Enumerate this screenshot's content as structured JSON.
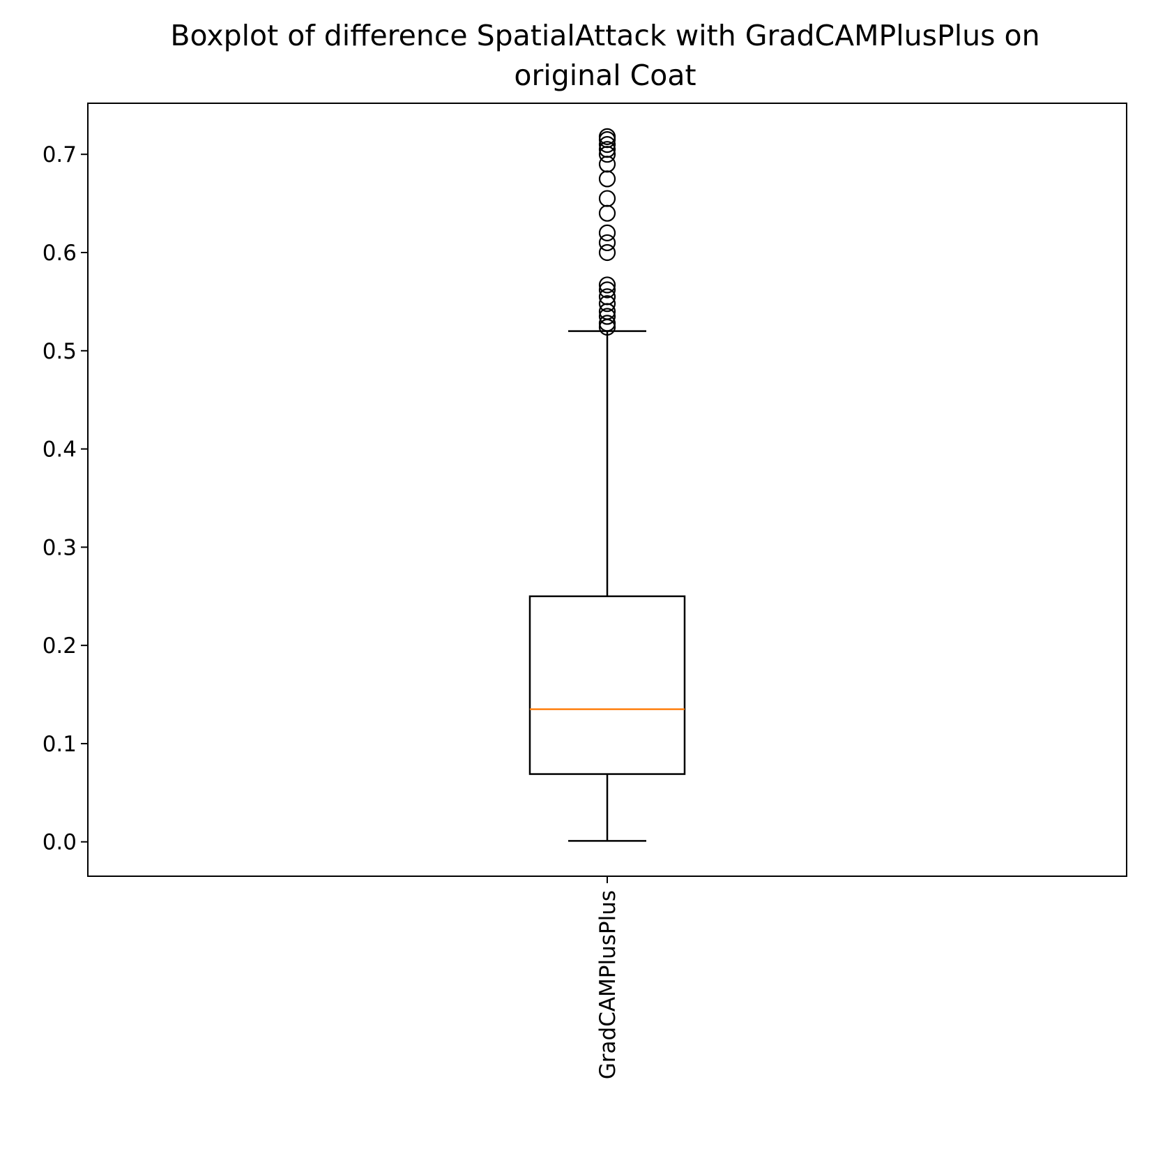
{
  "chart_data": {
    "type": "boxplot",
    "title": "Boxplot of difference SpatialAttack with GradCAMPlusPlus on original Coat",
    "title_lines": [
      "Boxplot of difference SpatialAttack with GradCAMPlusPlus on",
      "original Coat"
    ],
    "xlabel": "",
    "ylabel": "",
    "ylim": [
      -0.035,
      0.752
    ],
    "yticks": [
      0.0,
      0.1,
      0.2,
      0.3,
      0.4,
      0.5,
      0.6,
      0.7
    ],
    "ytick_labels": [
      "0.0",
      "0.1",
      "0.2",
      "0.3",
      "0.4",
      "0.5",
      "0.6",
      "0.7"
    ],
    "categories": [
      "GradCAMPlusPlus"
    ],
    "xtick_rotation": "vertical",
    "grid": false,
    "legend": "none",
    "series": [
      {
        "whisker_low": 0.001,
        "q1": 0.069,
        "median": 0.135,
        "q3": 0.25,
        "whisker_high": 0.52,
        "outliers": [
          0.524,
          0.528,
          0.535,
          0.54,
          0.548,
          0.555,
          0.562,
          0.567,
          0.6,
          0.61,
          0.62,
          0.64,
          0.655,
          0.675,
          0.69,
          0.7,
          0.705,
          0.71,
          0.715,
          0.718
        ]
      }
    ],
    "colors": {
      "box": "#000000",
      "median": "#ff7f0e",
      "whisker": "#000000",
      "outlier": "#000000"
    }
  }
}
